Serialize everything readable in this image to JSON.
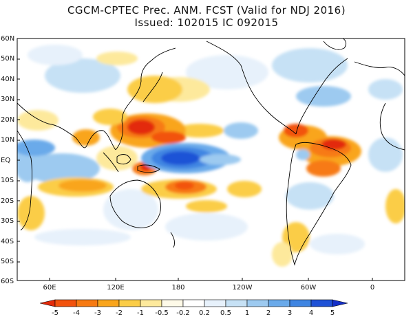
{
  "title_line1": "CGCM-CPTEC Prec. ANM. FCST  (Valid for NDJ 2016)",
  "title_line2": "Issued:  102015 IC 092015",
  "lat_labels": [
    "60N",
    "50N",
    "40N",
    "30N",
    "20N",
    "10N",
    "EQ",
    "10S",
    "20S",
    "30S",
    "40S",
    "50S",
    "60S"
  ],
  "lon_labels": [
    "60E",
    "120E",
    "180",
    "120W",
    "60W",
    "0"
  ],
  "colorbar": {
    "labels": [
      "-5",
      "-4",
      "-3",
      "-2",
      "-1",
      "-0.5",
      "-0.2",
      "0.2",
      "0.5",
      "1",
      "2",
      "3",
      "4",
      "5"
    ],
    "colors": [
      "#e32b0a",
      "#f2520d",
      "#f77a12",
      "#f9a51c",
      "#fbcd47",
      "#fde99c",
      "#fefae8",
      "#ffffff",
      "#e7f1fb",
      "#c6e1f5",
      "#9dcaf0",
      "#6aaaea",
      "#3f85e2",
      "#1f52d6",
      "#1530c8"
    ]
  },
  "anomaly_colors": {
    "dry_strong": "#e32b0a",
    "dry_mid": "#f77a12",
    "dry_weak": "#fbcd47",
    "wet_weak": "#c6e1f5",
    "wet_mid": "#6aaaea",
    "wet_strong": "#1f52d6"
  }
}
